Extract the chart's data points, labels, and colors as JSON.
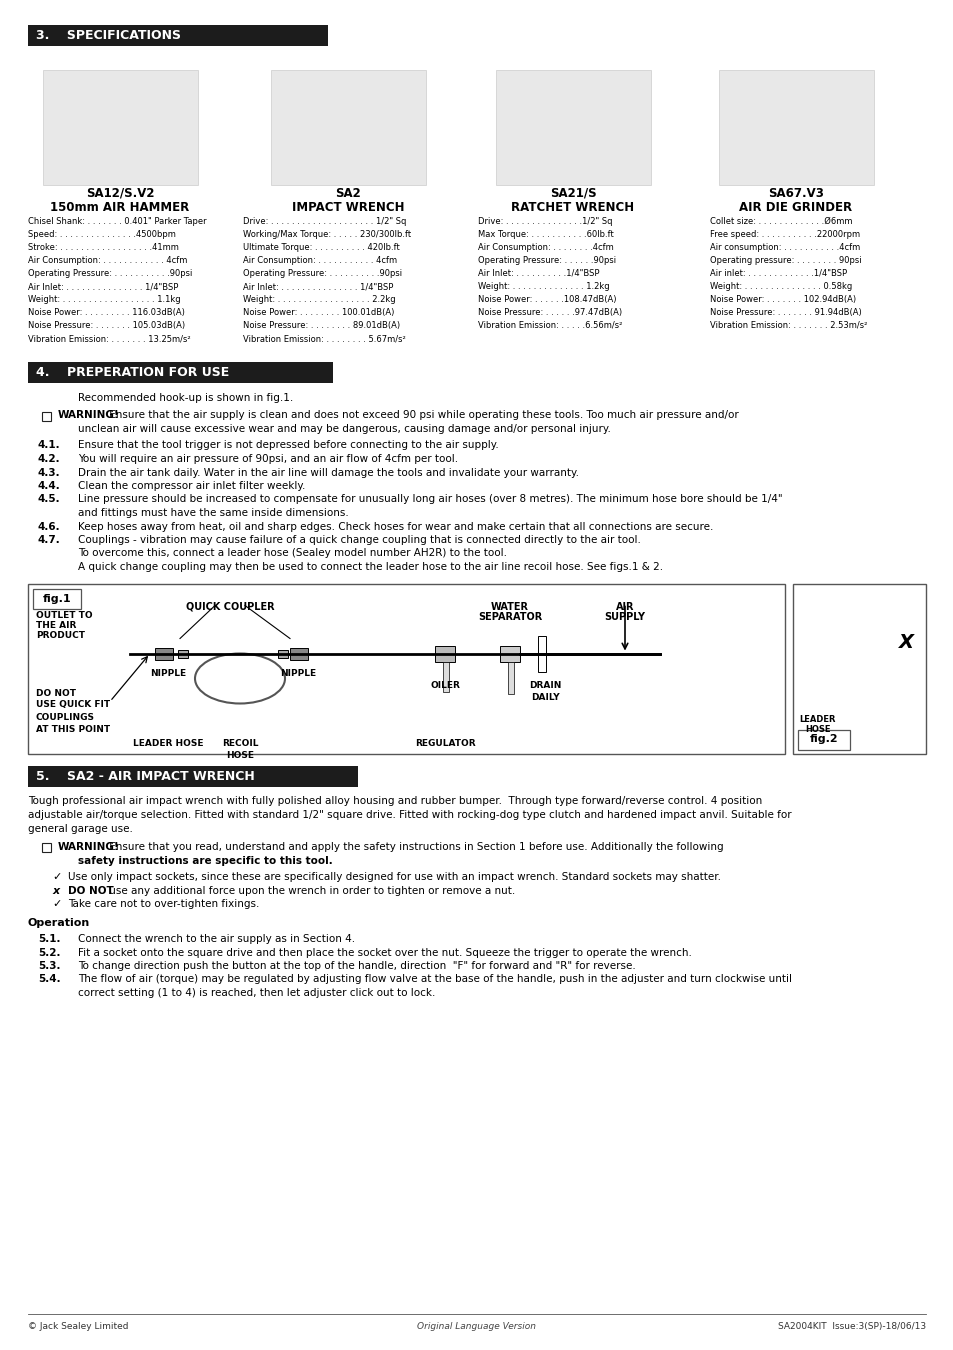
{
  "page_bg": "#ffffff",
  "header_bg": "#1c1c1c",
  "header_text_color": "#ffffff",
  "body_text_color": "#000000",
  "section3_title": "3.    SPECIFICATIONS",
  "section4_title": "4.    PREPERATION FOR USE",
  "section5_title": "5.    SA2 - AIR IMPACT WRENCH",
  "tools": [
    {
      "name": "SA12/S.V2",
      "subtitle": "150mm AIR HAMMER"
    },
    {
      "name": "SA2",
      "subtitle": "IMPACT WRENCH"
    },
    {
      "name": "SA21/S",
      "subtitle": "RATCHET WRENCH"
    },
    {
      "name": "SA67.V3",
      "subtitle": "AIR DIE GRINDER"
    }
  ],
  "specs_col1": [
    [
      "Chisel Shank:",
      "0.401\" Parker Taper"
    ],
    [
      "Speed:",
      "4500bpm"
    ],
    [
      "Stroke:",
      "41mm"
    ],
    [
      "Air Consumption:",
      "4cfm"
    ],
    [
      "Operating Pressure:",
      "90psi"
    ],
    [
      "Air Inlet:",
      "1/4\"BSP"
    ],
    [
      "Weight:",
      "1.1kg"
    ],
    [
      "Noise Power:",
      "116.03dB(A)"
    ],
    [
      "Noise Pressure:",
      "105.03dB(A)"
    ],
    [
      "Vibration Emission:",
      "13.25m/s²"
    ]
  ],
  "specs_col2": [
    [
      "Drive:",
      "1/2\" Sq"
    ],
    [
      "Working/Max Torque:",
      "230/300lb.ft"
    ],
    [
      "Ultimate Torque:",
      "420lb.ft"
    ],
    [
      "Air Consumption:",
      "4cfm"
    ],
    [
      "Operating Pressure:",
      "90psi"
    ],
    [
      "Air Inlet:",
      "1/4\"BSP"
    ],
    [
      "Weight:",
      "2.2kg"
    ],
    [
      "Noise Power:",
      "100.01dB(A)"
    ],
    [
      "Noise Pressure:",
      "89.01dB(A)"
    ],
    [
      "Vibration Emission:",
      "5.67m/s²"
    ]
  ],
  "specs_col3": [
    [
      "Drive:",
      "1/2\" Sq"
    ],
    [
      "Max Torque:",
      "60lb.ft"
    ],
    [
      "Air Consumption:",
      "4cfm"
    ],
    [
      "Operating Pressure:",
      "90psi"
    ],
    [
      "Air Inlet:",
      "1/4\"BSP"
    ],
    [
      "Weight:",
      "1.2kg"
    ],
    [
      "Noise Power:",
      "108.47dB(A)"
    ],
    [
      "Noise Pressure:",
      "97.47dB(A)"
    ],
    [
      "Vibration Emission:",
      "6.56m/s²"
    ]
  ],
  "specs_col4": [
    [
      "Collet size:",
      "Ø6mm"
    ],
    [
      "Free speed:",
      "22000rpm"
    ],
    [
      "Air consumption:",
      "4cfm"
    ],
    [
      "Operating pressure:",
      "90psi"
    ],
    [
      "Air inlet:",
      "1/4\"BSP"
    ],
    [
      "Weight:",
      "0.58kg"
    ],
    [
      "Noise Power:",
      "102.94dB(A)"
    ],
    [
      "Noise Pressure:",
      "91.94dB(A)"
    ],
    [
      "Vibration Emission:",
      "2.53m/s²"
    ]
  ],
  "spec_raw_col1": [
    "Chisel Shank: . . . . . . . 0.401\" Parker Taper",
    "Speed: . . . . . . . . . . . . . . .4500bpm",
    "Stroke: . . . . . . . . . . . . . . . . . .41mm",
    "Air Consumption: . . . . . . . . . . . . 4cfm",
    "Operating Pressure: . . . . . . . . . . .90psi",
    "Air Inlet: . . . . . . . . . . . . . . . 1/4\"BSP",
    "Weight: . . . . . . . . . . . . . . . . . . 1.1kg",
    "Noise Power: . . . . . . . . . 116.03dB(A)",
    "Noise Pressure: . . . . . . . 105.03dB(A)",
    "Vibration Emission: . . . . . . . 13.25m/s²"
  ],
  "spec_raw_col2": [
    "Drive: . . . . . . . . . . . . . . . . . . . . 1/2\" Sq",
    "Working/Max Torque: . . . . . 230/300lb.ft",
    "Ultimate Torque: . . . . . . . . . . 420lb.ft",
    "Air Consumption: . . . . . . . . . . . 4cfm",
    "Operating Pressure: . . . . . . . . . .90psi",
    "Air Inlet: . . . . . . . . . . . . . . . 1/4\"BSP",
    "Weight: . . . . . . . . . . . . . . . . . . 2.2kg",
    "Noise Power: . . . . . . . . 100.01dB(A)",
    "Noise Pressure: . . . . . . . . 89.01dB(A)",
    "Vibration Emission: . . . . . . . . 5.67m/s²"
  ],
  "spec_raw_col3": [
    "Drive: . . . . . . . . . . . . . . .1/2\" Sq",
    "Max Torque: . . . . . . . . . . .60lb.ft",
    "Air Consumption: . . . . . . . .4cfm",
    "Operating Pressure: . . . . . .90psi",
    "Air Inlet: . . . . . . . . . .1/4\"BSP",
    "Weight: . . . . . . . . . . . . . . 1.2kg",
    "Noise Power: . . . . . .108.47dB(A)",
    "Noise Pressure: . . . . . .97.47dB(A)",
    "Vibration Emission: . . . . .6.56m/s²"
  ],
  "spec_raw_col4": [
    "Collet size: . . . . . . . . . . . . .Ø6mm",
    "Free speed: . . . . . . . . . . .22000rpm",
    "Air consumption: . . . . . . . . . . .4cfm",
    "Operating pressure: . . . . . . . . 90psi",
    "Air inlet: . . . . . . . . . . . . .1/4\"BSP",
    "Weight: . . . . . . . . . . . . . . . 0.58kg",
    "Noise Power: . . . . . . . 102.94dB(A)",
    "Noise Pressure: . . . . . . . 91.94dB(A)",
    "Vibration Emission: . . . . . . . 2.53m/s²"
  ],
  "prep_intro": "Recommended hook-up is shown in fig.1.",
  "prep_warning_bold": "WARNING!",
  "prep_warning_rest": " Ensure that the air supply is clean and does not exceed 90 psi while operating these tools. Too much air pressure and/or",
  "prep_warning_line2": "unclean air will cause excessive wear and may be dangerous, causing damage and/or personal injury.",
  "prep_items": [
    {
      "num": "4.1.",
      "lines": [
        "Ensure that the tool trigger is not depressed before connecting to the air supply."
      ]
    },
    {
      "num": "4.2.",
      "lines": [
        "You will require an air pressure of 90psi, and an air flow of 4cfm per tool."
      ]
    },
    {
      "num": "4.3.",
      "lines": [
        "Drain the air tank daily. Water in the air line will damage the tools and invalidate your warranty."
      ]
    },
    {
      "num": "4.4.",
      "lines": [
        "Clean the compressor air inlet filter weekly."
      ]
    },
    {
      "num": "4.5.",
      "lines": [
        "Line pressure should be increased to compensate for unusually long air hoses (over 8 metres). The minimum hose bore should be 1/4\"",
        "and fittings must have the same inside dimensions."
      ]
    },
    {
      "num": "4.6.",
      "lines": [
        "Keep hoses away from heat, oil and sharp edges. Check hoses for wear and make certain that all connections are secure."
      ]
    },
    {
      "num": "4.7.",
      "lines": [
        "Couplings - vibration may cause failure of a quick change coupling that is connected directly to the air tool.",
        "To overcome this, connect a leader hose (Sealey model number AH2R) to the tool.",
        "A quick change coupling may then be used to connect the leader hose to the air line recoil hose. See figs.1 & 2."
      ]
    }
  ],
  "fig1_labels": {
    "fig1": "fig.1",
    "outlet_to": "OUTLET TO",
    "the_air": "THE AIR",
    "product": "PRODUCT",
    "do_not": "DO NOT",
    "use_quick_fit": "USE QUICK FIT",
    "couplings": "COUPLINGS",
    "at_this_point": "AT THIS POINT",
    "quick_coupler": "QUICK COUPLER",
    "nipple1": "NIPPLE",
    "nipple2": "NIPPLE",
    "leader_hose": "LEADER HOSE",
    "recoil": "RECOIL",
    "hose": "HOSE",
    "water": "WATER",
    "separator": "SEPARATOR",
    "air": "AIR",
    "supply": "SUPPLY",
    "oiler": "OILER",
    "drain": "DRAIN",
    "daily": "DAILY",
    "regulator": "REGULATOR",
    "fig2": "fig.2",
    "leader": "LEADER",
    "hose2": "HOSE",
    "x_label": "X"
  },
  "section5_intro_lines": [
    "Tough professional air impact wrench with fully polished alloy housing and rubber bumper.  Through type forward/reverse control. 4 position",
    "adjustable air/torque selection. Fitted with standard 1/2\" square drive. Fitted with rocking-dog type clutch and hardened impact anvil. Suitable for",
    "general garage use."
  ],
  "section5_warning_bold": "WARNING!",
  "section5_warning_rest": " Ensure that you read, understand and apply the safety instructions in Section 1 before use. Additionally the following",
  "section5_warning_line2": "safety instructions are specific to this tool.",
  "section5_items": [
    {
      "sym": "✓",
      "bold": false,
      "text": "Use only impact sockets, since these are specifically designed for use with an impact wrench. Standard sockets may shatter."
    },
    {
      "sym": "x",
      "bold": true,
      "pre_bold": "DO NOT",
      "text": " use any additional force upon the wrench in order to tighten or remove a nut."
    },
    {
      "sym": "✓",
      "bold": false,
      "text": "Take care not to over-tighten fixings."
    }
  ],
  "operation_title": "Operation",
  "operation_items": [
    {
      "num": "5.1.",
      "lines": [
        "Connect the wrench to the air supply as in Section 4."
      ]
    },
    {
      "num": "5.2.",
      "lines": [
        "Fit a socket onto the square drive and then place the socket over the nut. Squeeze the trigger to operate the wrench."
      ]
    },
    {
      "num": "5.3.",
      "lines": [
        "To change direction push the button at the top of the handle, direction  \"F\" for forward and \"R\" for reverse."
      ]
    },
    {
      "num": "5.4.",
      "lines": [
        "The flow of air (torque) may be regulated by adjusting flow valve at the base of the handle, push in the adjuster and turn clockwise until",
        "correct setting (1 to 4) is reached, then let adjuster click out to lock."
      ]
    }
  ],
  "footer_left": "© Jack Sealey Limited",
  "footer_center": "Original Language Version",
  "footer_right": "SA2004KIT  Issue:3(SP)-18/06/13"
}
